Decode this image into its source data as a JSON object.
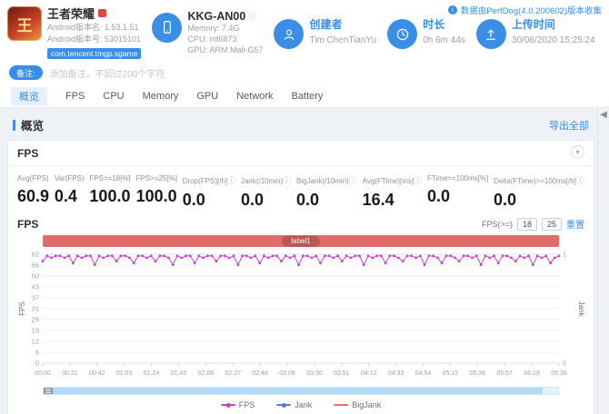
{
  "accent_color": "#3a8ee6",
  "header": {
    "app": {
      "icon_text": "王",
      "name": "王者荣耀",
      "version_name": "Android版本名: 1.53.1.51",
      "version_code": "Android版本号: 53015101",
      "package": "com.tencent.tmgp.sgame"
    },
    "device": {
      "model": "KKG-AN00",
      "memory": "Memory: 7.4G",
      "cpu": "CPU: mt6873",
      "gpu": "GPU: ARM Mali-G57"
    },
    "creator": {
      "label": "创建者",
      "value": "Tim ChenTianYu"
    },
    "duration": {
      "label": "时长",
      "value": "0h 6m 44s"
    },
    "upload": {
      "label": "上传时间",
      "value": "30/06/2020 15:25:24"
    },
    "collect_info": "数据由PerfDog(4.0.200602)版本收集"
  },
  "note": {
    "label": "备注:",
    "placeholder": "添加备注，不超过200个字符"
  },
  "tabs": [
    {
      "key": "overview",
      "label": "概览",
      "active": true
    },
    {
      "key": "fps",
      "label": "FPS",
      "active": false
    },
    {
      "key": "cpu",
      "label": "CPU",
      "active": false
    },
    {
      "key": "memory",
      "label": "Memory",
      "active": false
    },
    {
      "key": "gpu",
      "label": "GPU",
      "active": false
    },
    {
      "key": "network",
      "label": "Network",
      "active": false
    },
    {
      "key": "battery",
      "label": "Battery",
      "active": false
    }
  ],
  "section": {
    "title": "概览",
    "export_all": "导出全部"
  },
  "fps_panel": {
    "title": "FPS",
    "stats": [
      {
        "label": "Avg(FPS)",
        "value": "60.9",
        "info": false
      },
      {
        "label": "Var(FPS)",
        "value": "0.4",
        "info": false
      },
      {
        "label": "FPS>=18[%]",
        "value": "100.0",
        "info": false
      },
      {
        "label": "FPS>=25[%]",
        "value": "100.0",
        "info": false
      },
      {
        "label": "Drop(FPS)[/h]",
        "value": "0.0",
        "info": true
      },
      {
        "label": "Jank(/10min)",
        "value": "0.0",
        "info": true
      },
      {
        "label": "BigJank(/10min)",
        "value": "0.0",
        "info": true
      },
      {
        "label": "Avg(FTime)[ms]",
        "value": "16.4",
        "info": true
      },
      {
        "label": "FTime>=100ms[%]",
        "value": "0.0",
        "info": false
      },
      {
        "label": "Delta(FTime)>=100ms[/h]",
        "value": "0.0",
        "info": true
      }
    ],
    "chart_title": "FPS",
    "threshold": {
      "label": "FPS(>=)",
      "low": "18",
      "high": "25",
      "reset": "重置"
    },
    "banner_label": "label1",
    "banner_color": "#e56a6a"
  },
  "chart_data": {
    "type": "line",
    "title": "FPS",
    "x_ticks": [
      "00:00",
      "00:21",
      "00:42",
      "01:03",
      "01:24",
      "01:45",
      "02:06",
      "02:27",
      "02:48",
      "03:09",
      "03:30",
      "03:51",
      "04:12",
      "04:33",
      "04:54",
      "05:15",
      "05:36",
      "05:57",
      "06:18",
      "06:39"
    ],
    "x_unit": "mm:ss",
    "y_left": {
      "label": "FPS",
      "max": 62,
      "ticks": [
        62,
        56,
        50,
        43,
        37,
        31,
        25,
        19,
        12,
        6,
        0
      ]
    },
    "y_right": {
      "label": "Jank",
      "ticks": [
        1,
        0
      ]
    },
    "grid": true,
    "legend_position": "bottom",
    "series": [
      {
        "name": "FPS",
        "color": "#c345c3",
        "marker": "dot",
        "values": [
          58,
          61,
          60,
          61,
          61,
          60,
          61,
          57,
          61,
          60,
          61,
          61,
          56,
          61,
          60,
          61,
          61,
          58,
          61,
          61,
          60,
          57,
          61,
          61,
          60,
          61,
          58,
          61,
          61,
          60,
          56,
          61,
          60,
          61,
          61,
          57,
          61,
          60,
          61,
          61,
          58,
          61,
          61,
          60,
          61,
          56,
          61,
          61,
          60,
          61,
          57,
          61,
          60,
          61,
          61,
          58,
          61,
          60,
          61,
          56,
          61,
          61,
          60,
          61,
          57,
          61,
          61,
          60,
          61,
          58,
          61,
          60,
          61,
          61,
          56,
          61,
          60,
          61,
          61,
          57,
          61,
          61,
          60,
          58,
          61,
          61,
          60,
          61,
          56,
          61,
          61,
          60,
          57,
          61,
          61,
          60,
          58,
          61,
          61,
          60,
          61,
          56,
          61,
          60,
          61,
          57,
          61,
          61,
          60,
          58,
          61,
          60,
          61,
          56,
          61,
          60,
          61,
          57,
          60,
          61
        ]
      },
      {
        "name": "Jank",
        "color": "#5b7be0",
        "marker": "dot",
        "values": []
      },
      {
        "name": "BigJank",
        "color": "#e86c6c",
        "marker": "line",
        "values": []
      }
    ]
  }
}
